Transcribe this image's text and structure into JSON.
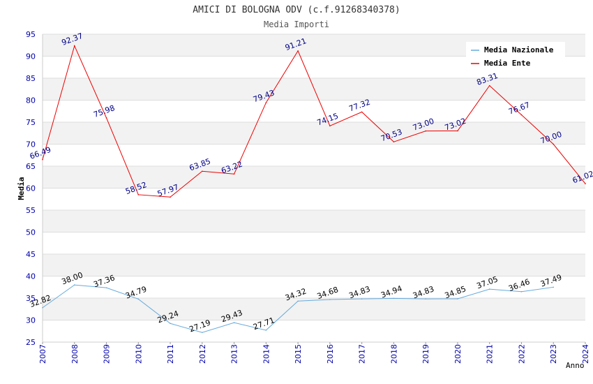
{
  "chart_data": {
    "type": "line",
    "title": "AMICI DI BOLOGNA ODV (c.f.91268340378)",
    "subtitle": "Media Importi",
    "xlabel": "Anno",
    "ylabel": "Media",
    "ylim": [
      25,
      95
    ],
    "yticks": [
      25,
      30,
      35,
      40,
      45,
      50,
      55,
      60,
      65,
      70,
      75,
      80,
      85,
      90,
      95
    ],
    "x": [
      "2007",
      "2008",
      "2009",
      "2010",
      "2011",
      "2012",
      "2013",
      "2014",
      "2015",
      "2016",
      "2017",
      "2018",
      "2019",
      "2020",
      "2021",
      "2022",
      "2023",
      "2024"
    ],
    "series": [
      {
        "name": "Media Nazionale",
        "color": "#66aadd",
        "label_color": "#000000",
        "values": [
          32.82,
          38.0,
          37.36,
          34.79,
          29.24,
          27.19,
          29.43,
          27.71,
          34.32,
          34.68,
          34.83,
          34.94,
          34.83,
          34.85,
          37.05,
          36.46,
          37.49,
          null
        ],
        "labels": [
          "32.82",
          "38.00",
          "37.36",
          "34.79",
          "29.24",
          "27.19",
          "29.43",
          "27.71",
          "34.32",
          "34.68",
          "34.83",
          "34.94",
          "34.83",
          "34.85",
          "37.05",
          "36.46",
          "37.49",
          null
        ]
      },
      {
        "name": "Media Ente",
        "color": "#ee0000",
        "label_color": "#000088",
        "values": [
          66.49,
          92.37,
          75.98,
          58.52,
          57.97,
          63.85,
          63.22,
          79.43,
          91.21,
          74.15,
          77.32,
          70.53,
          73.0,
          73.02,
          83.31,
          76.67,
          70.0,
          61.02
        ],
        "labels": [
          "66.49",
          "92.37",
          "75.98",
          "58.52",
          "57.97",
          "63.85",
          "63.22",
          "79.43",
          "91.21",
          "74.15",
          "77.32",
          "70.53",
          "73.00",
          "73.02",
          "83.31",
          "76.67",
          "70.00",
          "61.02"
        ]
      }
    ],
    "legend_position": "top-right",
    "colors": {
      "axis_tick_label": "#0000aa",
      "band": "#f2f2f2",
      "grid": "#dddddd",
      "title": "#333333"
    }
  }
}
